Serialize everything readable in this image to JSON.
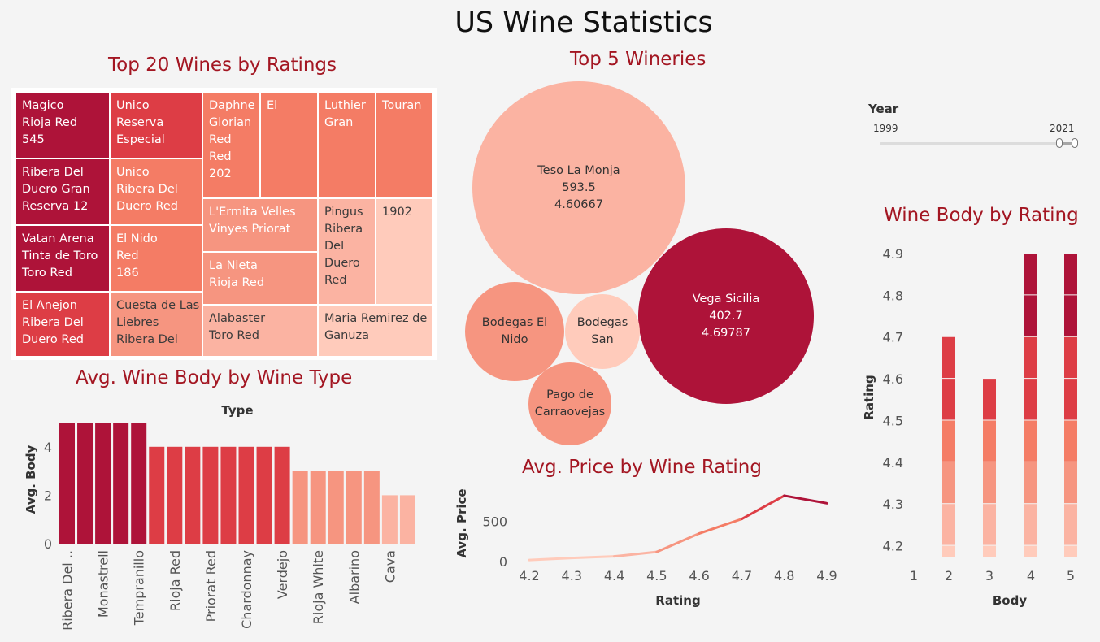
{
  "page": {
    "title": "US Wine Statistics"
  },
  "colors": {
    "darkest": "#ae1339",
    "dark": "#dd3d45",
    "mid": "#f47c65",
    "light": "#f69580",
    "lighter": "#fbb3a2",
    "lightest": "#ffcbbb",
    "title_red": "#a31622"
  },
  "year_filter": {
    "label": "Year",
    "min": "1999",
    "max": "2021",
    "range_start": 0.92,
    "range_end": 1.0
  },
  "chart_data": [
    {
      "id": "treemap",
      "type": "treemap",
      "title": "Top 20 Wines by Ratings",
      "cells": [
        {
          "lines": [
            "Magico",
            "Rioja Red",
            "545"
          ],
          "value": 545
        },
        {
          "lines": [
            "Unico",
            "Reserva",
            "Especial"
          ]
        },
        {
          "lines": [
            "Daphne",
            "Glorian",
            "Red",
            "Red",
            "202"
          ],
          "value": 202
        },
        {
          "lines": [
            "El"
          ]
        },
        {
          "lines": [
            "Luthier",
            "Gran"
          ]
        },
        {
          "lines": [
            "Touran"
          ]
        },
        {
          "lines": [
            "Ribera Del",
            "Duero Gran",
            "Reserva 12"
          ]
        },
        {
          "lines": [
            "Unico",
            "Ribera Del",
            "Duero Red"
          ]
        },
        {
          "lines": [
            "L'Ermita Velles",
            "Vinyes Priorat"
          ]
        },
        {
          "lines": [
            "Pingus",
            "Ribera",
            "Del",
            "Duero",
            "Red"
          ]
        },
        {
          "lines": [
            "1902"
          ]
        },
        {
          "lines": [
            "Vatan Arena",
            "Tinta de Toro",
            "Toro Red"
          ]
        },
        {
          "lines": [
            "El Nido",
            "Red",
            "186"
          ],
          "value": 186
        },
        {
          "lines": [
            "La Nieta",
            "Rioja Red"
          ]
        },
        {
          "lines": [
            "El Anejon",
            "Ribera Del",
            "Duero Red"
          ]
        },
        {
          "lines": [
            "Cuesta de Las",
            "Liebres",
            "Ribera Del"
          ]
        },
        {
          "lines": [
            "Alabaster",
            "Toro Red"
          ]
        },
        {
          "lines": [
            "Maria Remirez de",
            "Ganuza"
          ]
        }
      ]
    },
    {
      "id": "wineries",
      "type": "bubble",
      "title": "Top 5 Wineries",
      "bubbles": [
        {
          "name": "Teso La Monja",
          "price": "593.5",
          "rating": "4.60667"
        },
        {
          "name": "Vega Sicilia",
          "price": "402.7",
          "rating": "4.69787"
        },
        {
          "name": "Bodegas El Nido",
          "lines": [
            "Bodegas El",
            "Nido"
          ]
        },
        {
          "name": "Bodegas San",
          "lines": [
            "Bodegas",
            "San"
          ]
        },
        {
          "name": "Pago de Carraovejas",
          "lines": [
            "Pago de",
            "Carraovejas"
          ]
        }
      ]
    },
    {
      "id": "body_by_type",
      "type": "bar",
      "title": "Avg. Wine Body by Wine Type",
      "xlabel": "Type",
      "ylabel": "Avg. Body",
      "ylim": [
        0,
        5
      ],
      "yticks": [
        0,
        2,
        4
      ],
      "categories": [
        "Ribera Del ..",
        "",
        "Monastrell",
        "",
        "Tempranillo",
        "",
        "Rioja Red",
        "",
        "Priorat Red",
        "",
        "Chardonnay",
        "",
        "Verdejo",
        "",
        "Rioja White",
        "",
        "Albarino",
        "",
        "Cava",
        ""
      ],
      "values": [
        5,
        5,
        5,
        5,
        5,
        4,
        4,
        4,
        4,
        4,
        4,
        4,
        4,
        3,
        3,
        3,
        3,
        3,
        2,
        2
      ]
    },
    {
      "id": "price_by_rating",
      "type": "line",
      "title": "Avg. Price by Wine Rating",
      "xlabel": "Rating",
      "ylabel": "Avg. Price",
      "x": [
        4.2,
        4.3,
        4.4,
        4.5,
        4.6,
        4.7,
        4.8,
        4.9
      ],
      "y": [
        20,
        45,
        65,
        120,
        350,
        530,
        820,
        725
      ],
      "yticks": [
        0,
        500
      ],
      "ylim": [
        -50,
        900
      ]
    },
    {
      "id": "body_by_rating",
      "type": "bar",
      "stacked": true,
      "title": "Wine Body by Rating",
      "xlabel": "Body",
      "ylabel": "Rating",
      "categories": [
        1,
        2,
        3,
        4,
        5
      ],
      "values": [
        null,
        4.7,
        4.6,
        4.9,
        4.9
      ],
      "ylim": [
        4.17,
        4.9
      ],
      "yticks": [
        4.2,
        4.3,
        4.4,
        4.5,
        4.6,
        4.7,
        4.8,
        4.9
      ]
    }
  ]
}
